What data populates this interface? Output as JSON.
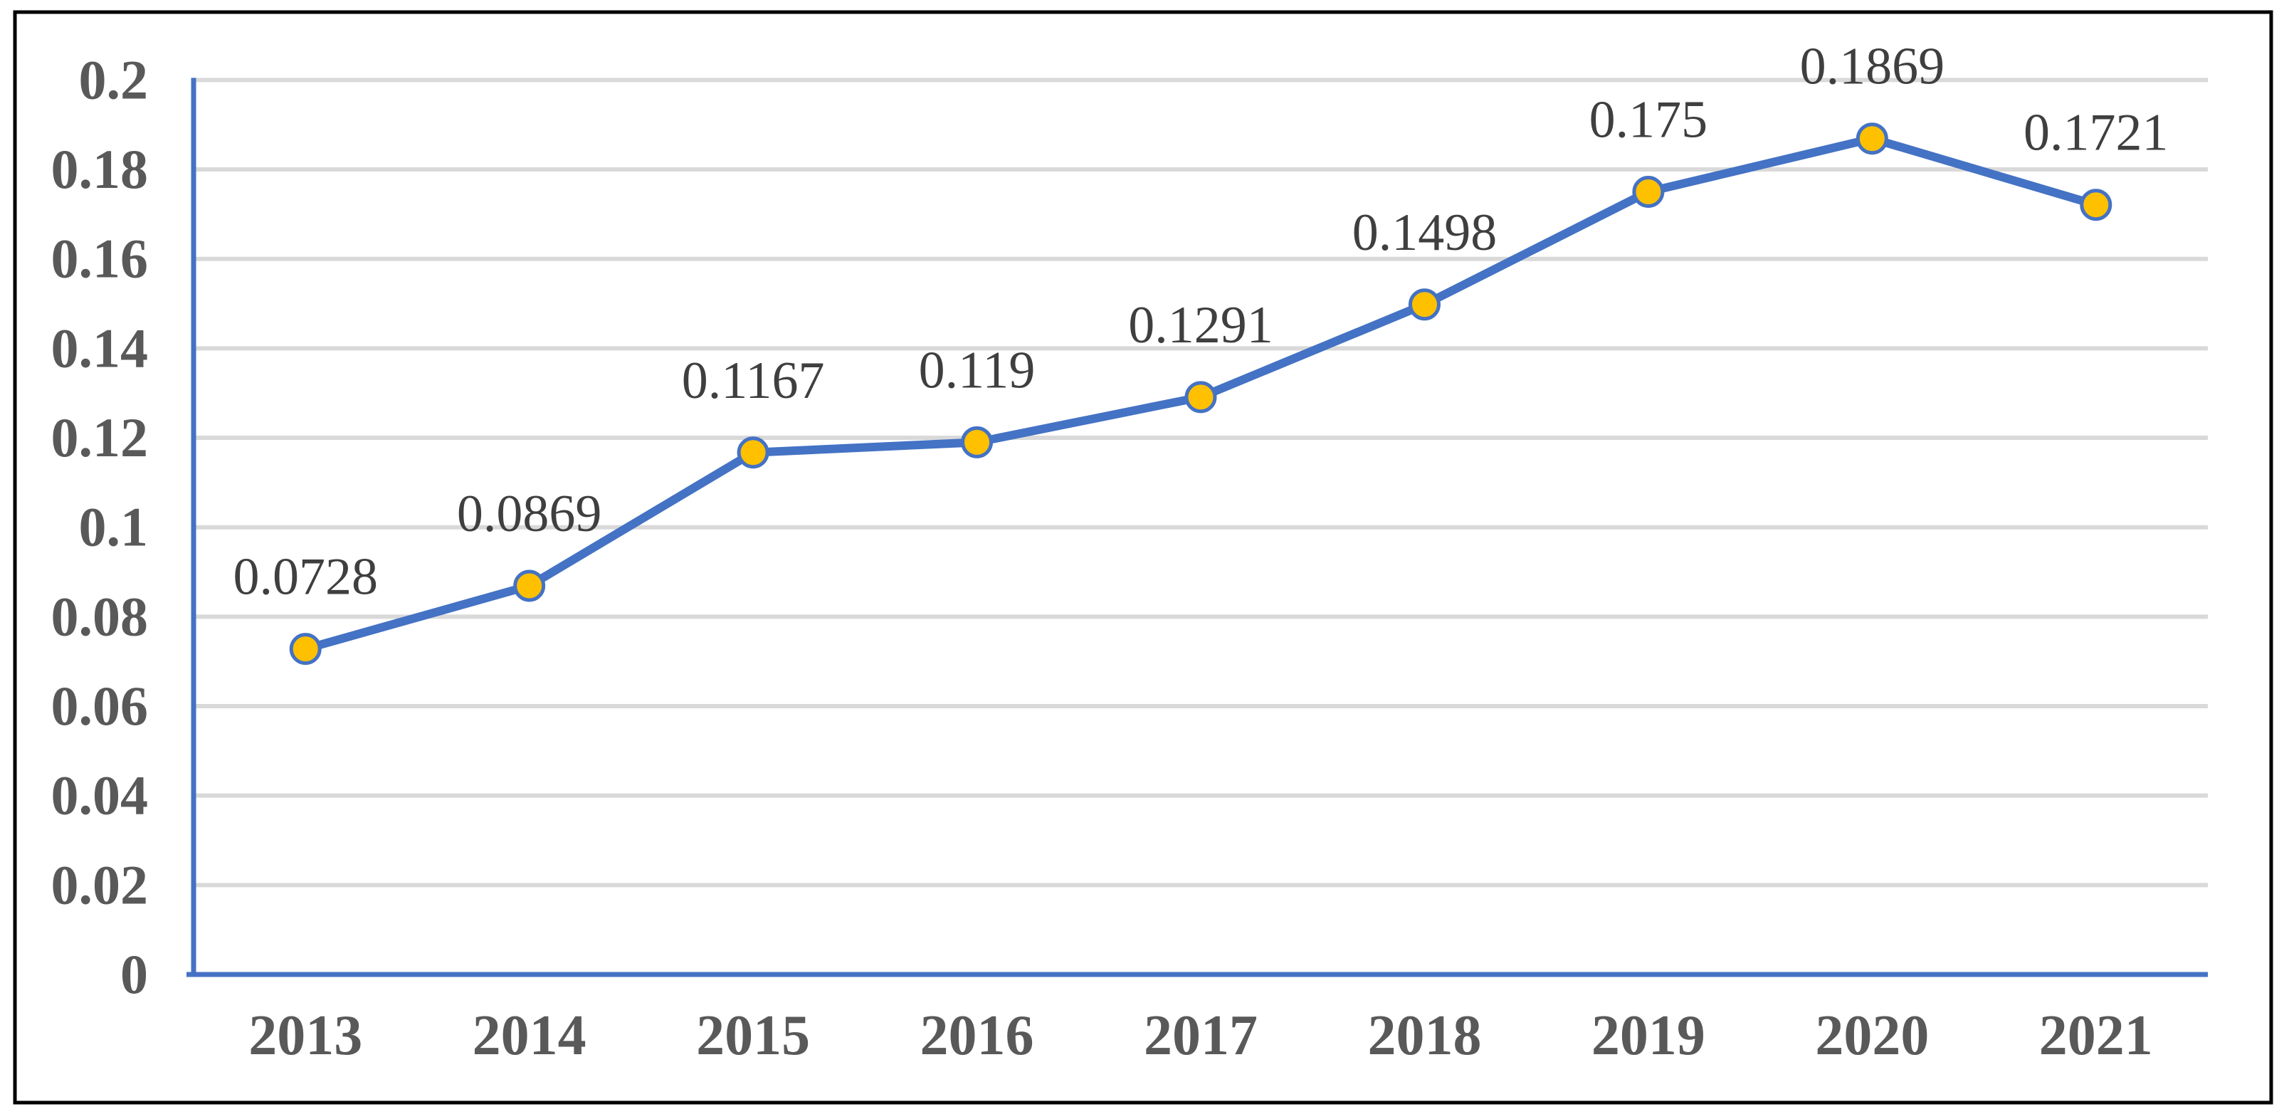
{
  "chart_data": {
    "type": "line",
    "title": "",
    "xlabel": "",
    "ylabel": "",
    "categories": [
      "2013",
      "2014",
      "2015",
      "2016",
      "2017",
      "2018",
      "2019",
      "2020",
      "2021"
    ],
    "series": [
      {
        "name": "value",
        "values": [
          0.0728,
          0.0869,
          0.1167,
          0.119,
          0.1291,
          0.1498,
          0.175,
          0.1869,
          0.1721
        ]
      }
    ],
    "point_labels": [
      "0.0728",
      "0.0869",
      "0.1167",
      "0.119",
      "0.1291",
      "0.1498",
      "0.175",
      "0.1869",
      "0.1721"
    ],
    "y_ticks": [
      {
        "value": 0,
        "label": "0"
      },
      {
        "value": 0.02,
        "label": "0.02"
      },
      {
        "value": 0.04,
        "label": "0.04"
      },
      {
        "value": 0.06,
        "label": "0.06"
      },
      {
        "value": 0.08,
        "label": "0.08"
      },
      {
        "value": 0.1,
        "label": "0.1"
      },
      {
        "value": 0.12,
        "label": "0.12"
      },
      {
        "value": 0.14,
        "label": "0.14"
      },
      {
        "value": 0.16,
        "label": "0.16"
      },
      {
        "value": 0.18,
        "label": "0.18"
      },
      {
        "value": 0.2,
        "label": "0.2"
      }
    ],
    "ylim": [
      0,
      0.2
    ],
    "grid": "horizontal",
    "legend": "none",
    "colors": {
      "line": "#4472C4",
      "marker_fill": "#FFC000",
      "marker_stroke": "#4472C4",
      "axis": "#4472C4",
      "gridline": "#D9D9D9",
      "tick_label": "#595959",
      "category_label": "#595959",
      "data_label": "#3F3F3F",
      "frame_border": "#000000",
      "background": "#FFFFFF"
    }
  }
}
